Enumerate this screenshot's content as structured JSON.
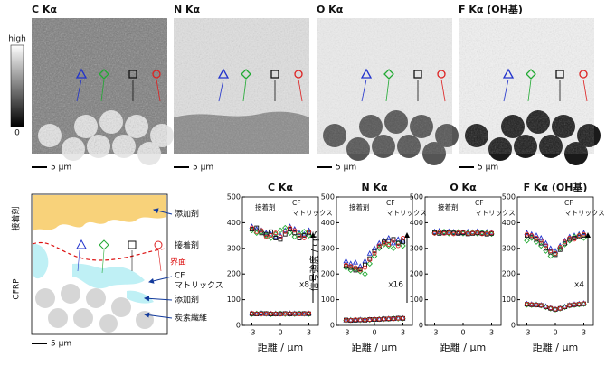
{
  "maps": [
    {
      "title": "C Kα",
      "scale": "5 μm"
    },
    {
      "title": "N Kα",
      "scale": "5 μm"
    },
    {
      "title": "O Kα",
      "scale": "5 μm"
    },
    {
      "title": "F Kα (OH基)",
      "scale": "5 μm"
    }
  ],
  "colorbar": {
    "high": "high",
    "low": "0"
  },
  "schematic": {
    "side_top": "接着剤",
    "side_bottom": "CFRP",
    "additive_top": "添加剤",
    "adhesive": "接着剤",
    "interface": "界面",
    "cf": "CF",
    "matrix": "マトリックス",
    "additive": "添加剤",
    "fiber": "炭素繊維",
    "scale": "5 μm"
  },
  "chart_data": [
    {
      "type": "scatter",
      "title": "C Kα",
      "xlabel": "距離 / μm",
      "annotations": [
        "接着剤",
        "CF",
        "マトリックス"
      ],
      "multiplier": "x8",
      "x": [
        -3,
        -2.5,
        -2,
        -1.5,
        -1,
        -0.5,
        0,
        0.5,
        1,
        1.5,
        2,
        2.5,
        3
      ],
      "xlim": [
        -4,
        4
      ],
      "xticks": [
        -3,
        0,
        3
      ],
      "ylim": [
        0,
        500
      ],
      "yticks": [
        0,
        100,
        200,
        300,
        400,
        500
      ],
      "series": [
        {
          "color": "#2233cc",
          "marker": "triangle",
          "values": [
            385,
            375,
            370,
            360,
            355,
            345,
            350,
            370,
            385,
            375,
            360,
            355,
            370
          ]
        },
        {
          "color": "#22aa33",
          "marker": "diamond",
          "values": [
            370,
            360,
            365,
            350,
            340,
            355,
            370,
            380,
            360,
            345,
            355,
            365,
            350
          ]
        },
        {
          "color": "#111111",
          "marker": "square",
          "values": [
            375,
            380,
            360,
            355,
            365,
            340,
            335,
            355,
            375,
            360,
            340,
            350,
            360
          ]
        },
        {
          "color": "#dd2222",
          "marker": "circle",
          "values": [
            380,
            365,
            370,
            345,
            350,
            360,
            345,
            365,
            380,
            370,
            350,
            340,
            365
          ]
        },
        {
          "color": "#2233cc",
          "marker": "triangle",
          "values": [
            46,
            45,
            47,
            44,
            45,
            46,
            44,
            45,
            47,
            46,
            45,
            44,
            46
          ]
        },
        {
          "color": "#22aa33",
          "marker": "diamond",
          "values": [
            44,
            46,
            45,
            45,
            43,
            45,
            46,
            44,
            45,
            44,
            46,
            45,
            44
          ]
        },
        {
          "color": "#111111",
          "marker": "square",
          "values": [
            45,
            44,
            46,
            46,
            44,
            44,
            45,
            46,
            44,
            45,
            45,
            46,
            45
          ]
        },
        {
          "color": "#dd2222",
          "marker": "circle",
          "values": [
            47,
            45,
            44,
            45,
            46,
            45,
            43,
            45,
            46,
            45,
            44,
            45,
            47
          ]
        }
      ]
    },
    {
      "type": "scatter",
      "title": "N Kα",
      "ylabel": "信号強度 / cps",
      "xlabel": "距離 / μm",
      "annotations": [
        "接着剤",
        "CF",
        "マトリックス"
      ],
      "multiplier": "x16",
      "x": [
        -3,
        -2.5,
        -2,
        -1.5,
        -1,
        -0.5,
        0,
        0.5,
        1,
        1.5,
        2,
        2.5,
        3
      ],
      "xlim": [
        -4,
        4
      ],
      "xticks": [
        -3,
        0,
        3
      ],
      "ylim": [
        0,
        500
      ],
      "yticks": [
        0,
        100,
        200,
        300,
        400,
        500
      ],
      "series": [
        {
          "color": "#2233cc",
          "marker": "triangle",
          "values": [
            250,
            240,
            245,
            230,
            250,
            280,
            300,
            320,
            330,
            340,
            320,
            335,
            330
          ]
        },
        {
          "color": "#22aa33",
          "marker": "diamond",
          "values": [
            225,
            215,
            220,
            210,
            200,
            240,
            270,
            300,
            315,
            310,
            300,
            320,
            310
          ]
        },
        {
          "color": "#111111",
          "marker": "square",
          "values": [
            230,
            225,
            215,
            220,
            235,
            260,
            290,
            305,
            325,
            330,
            335,
            320,
            325
          ]
        },
        {
          "color": "#dd2222",
          "marker": "circle",
          "values": [
            235,
            230,
            225,
            215,
            225,
            255,
            280,
            310,
            320,
            315,
            330,
            310,
            340
          ]
        },
        {
          "color": "#2233cc",
          "marker": "triangle",
          "values": [
            20,
            21,
            20,
            22,
            21,
            22,
            23,
            24,
            25,
            26,
            26,
            27,
            28
          ]
        },
        {
          "color": "#22aa33",
          "marker": "diamond",
          "values": [
            19,
            20,
            21,
            20,
            22,
            21,
            22,
            24,
            24,
            25,
            27,
            26,
            27
          ]
        },
        {
          "color": "#111111",
          "marker": "square",
          "values": [
            21,
            19,
            20,
            21,
            20,
            23,
            23,
            23,
            25,
            25,
            26,
            28,
            27
          ]
        },
        {
          "color": "#dd2222",
          "marker": "circle",
          "values": [
            20,
            20,
            22,
            21,
            21,
            22,
            24,
            24,
            24,
            26,
            25,
            27,
            28
          ]
        }
      ]
    },
    {
      "type": "scatter",
      "title": "O Kα",
      "xlabel": "距離 / μm",
      "annotations": [
        "接着剤",
        "CF",
        "マトリックス"
      ],
      "x": [
        -3,
        -2.5,
        -2,
        -1.5,
        -1,
        -0.5,
        0,
        0.5,
        1,
        1.5,
        2,
        2.5,
        3
      ],
      "xlim": [
        -4,
        4
      ],
      "xticks": [
        -3,
        0,
        3
      ],
      "ylim": [
        0,
        500
      ],
      "yticks": [
        0,
        100,
        200,
        300,
        400,
        500
      ],
      "series": [
        {
          "color": "#2233cc",
          "marker": "triangle",
          "values": [
            365,
            368,
            362,
            366,
            364,
            360,
            362,
            365,
            363,
            366,
            360,
            364,
            362
          ]
        },
        {
          "color": "#22aa33",
          "marker": "diamond",
          "values": [
            360,
            362,
            365,
            358,
            362,
            364,
            358,
            360,
            362,
            358,
            362,
            360,
            356
          ]
        },
        {
          "color": "#111111",
          "marker": "square",
          "values": [
            362,
            358,
            360,
            362,
            360,
            358,
            360,
            356,
            358,
            360,
            358,
            355,
            358
          ]
        },
        {
          "color": "#dd2222",
          "marker": "circle",
          "values": [
            358,
            364,
            358,
            360,
            356,
            362,
            364,
            358,
            360,
            362,
            356,
            358,
            360
          ]
        }
      ]
    },
    {
      "type": "scatter",
      "title": "F Kα (OH基)",
      "xlabel": "距離 / μm",
      "annotations": [
        "CF",
        "マトリックス"
      ],
      "multiplier": "x4",
      "x": [
        -3,
        -2.5,
        -2,
        -1.5,
        -1,
        -0.5,
        0,
        0.5,
        1,
        1.5,
        2,
        2.5,
        3
      ],
      "xlim": [
        -4,
        4
      ],
      "xticks": [
        -3,
        0,
        3
      ],
      "ylim": [
        0,
        500
      ],
      "yticks": [
        0,
        100,
        200,
        300,
        400,
        500
      ],
      "series": [
        {
          "color": "#2233cc",
          "marker": "triangle",
          "values": [
            360,
            355,
            350,
            340,
            320,
            300,
            290,
            310,
            330,
            345,
            350,
            355,
            360
          ]
        },
        {
          "color": "#22aa33",
          "marker": "diamond",
          "values": [
            330,
            340,
            325,
            310,
            290,
            270,
            280,
            300,
            315,
            330,
            345,
            350,
            340
          ]
        },
        {
          "color": "#111111",
          "marker": "square",
          "values": [
            350,
            345,
            335,
            320,
            300,
            285,
            275,
            295,
            320,
            335,
            340,
            345,
            350
          ]
        },
        {
          "color": "#dd2222",
          "marker": "circle",
          "values": [
            355,
            350,
            340,
            330,
            310,
            290,
            280,
            305,
            325,
            340,
            335,
            350,
            355
          ]
        },
        {
          "color": "#2233cc",
          "marker": "triangle",
          "values": [
            84,
            82,
            81,
            79,
            74,
            68,
            63,
            67,
            73,
            79,
            82,
            84,
            86
          ]
        },
        {
          "color": "#22aa33",
          "marker": "diamond",
          "values": [
            80,
            79,
            80,
            77,
            71,
            65,
            61,
            65,
            71,
            77,
            79,
            81,
            83
          ]
        },
        {
          "color": "#111111",
          "marker": "square",
          "values": [
            82,
            80,
            79,
            78,
            72,
            66,
            62,
            66,
            72,
            78,
            80,
            82,
            84
          ]
        },
        {
          "color": "#dd2222",
          "marker": "circle",
          "values": [
            83,
            81,
            80,
            78,
            73,
            67,
            63,
            66,
            73,
            78,
            81,
            83,
            85
          ]
        }
      ]
    }
  ]
}
